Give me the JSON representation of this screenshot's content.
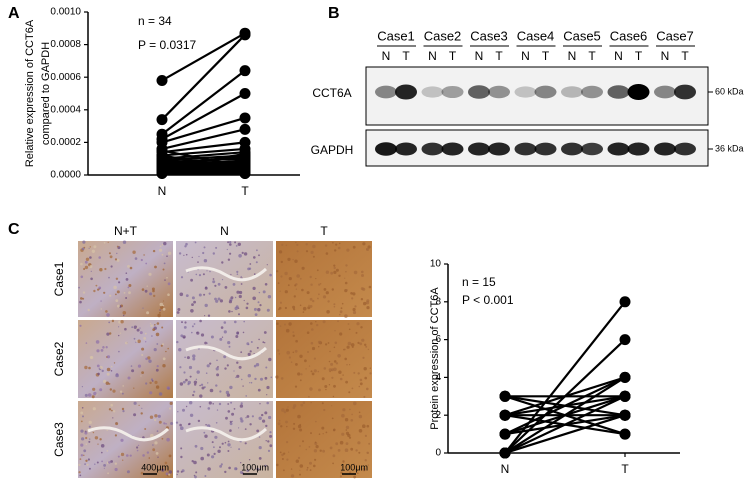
{
  "panel_labels": [
    "A",
    "B",
    "C"
  ],
  "chart_data": [
    {
      "type": "paired",
      "categories": [
        "N",
        "T"
      ],
      "ylabel": [
        "Relative expression of  CCT6A",
        "compared to GAPDH"
      ],
      "annotations": [
        "n = 34",
        "P = 0.0317"
      ],
      "ylim": [
        0,
        0.001
      ],
      "yticks": [
        {
          "value": 0,
          "label": "0.0000"
        },
        {
          "value": 0.0002,
          "label": "0.0002"
        },
        {
          "value": 0.0004,
          "label": "0.0004"
        },
        {
          "value": 0.0006,
          "label": "0.0006"
        },
        {
          "value": 0.0008,
          "label": "0.0008"
        },
        {
          "value": 0.001,
          "label": "0.0010"
        }
      ],
      "color": "#000000",
      "values": [
        [
          0.00058,
          0.00087
        ],
        [
          0.00034,
          0.00086
        ],
        [
          0.00025,
          0.00064
        ],
        [
          0.00022,
          0.0005
        ],
        [
          0.0002,
          0.00035
        ],
        [
          0.00016,
          0.00028
        ],
        [
          0.00014,
          0.0002
        ],
        [
          0.00012,
          0.00016
        ],
        [
          0.0001,
          0.00014
        ],
        [
          9e-05,
          0.00012
        ],
        [
          8e-05,
          0.0001
        ],
        [
          7e-05,
          8e-05
        ],
        [
          6e-05,
          7e-05
        ],
        [
          5e-05,
          6e-05
        ],
        [
          4e-05,
          5e-05
        ],
        [
          3e-05,
          4e-05
        ],
        [
          2e-05,
          3e-05
        ],
        [
          1e-05,
          2e-05
        ],
        [
          0.00015,
          5e-05
        ],
        [
          0.00012,
          3e-05
        ],
        [
          0.0001,
          2e-05
        ],
        [
          8e-05,
          1e-05
        ],
        [
          6e-05,
          0.00011
        ],
        [
          5e-05,
          9e-05
        ],
        [
          4e-05,
          0.00013
        ],
        [
          3e-05,
          7e-05
        ],
        [
          2e-05,
          1e-05
        ],
        [
          1e-05,
          3e-05
        ],
        [
          2e-05,
          6e-05
        ],
        [
          3e-05,
          1e-05
        ],
        [
          4e-05,
          2e-05
        ],
        [
          6e-05,
          4e-05
        ],
        [
          1e-05,
          1e-05
        ],
        [
          7e-05,
          0.00011
        ]
      ]
    },
    {
      "type": "paired",
      "categories": [
        "N",
        "T"
      ],
      "ylabel": [
        "Protein expression of CCT6A"
      ],
      "annotations": [
        "n = 15",
        "P < 0.001"
      ],
      "ylim": [
        0,
        10
      ],
      "yticks": [
        0,
        2,
        4,
        6,
        8,
        10
      ],
      "color": "#000000",
      "values": [
        [
          0,
          8
        ],
        [
          0,
          6
        ],
        [
          1,
          4
        ],
        [
          0,
          4
        ],
        [
          2,
          3
        ],
        [
          3,
          3
        ],
        [
          1,
          2
        ],
        [
          2,
          2
        ],
        [
          3,
          1
        ],
        [
          2,
          1
        ],
        [
          0,
          3
        ],
        [
          1,
          3
        ],
        [
          0,
          2
        ],
        [
          3,
          2
        ],
        [
          2,
          4
        ]
      ]
    }
  ],
  "blot": {
    "cases": [
      {
        "name": "Case1",
        "lanes": [
          "N",
          "T"
        ]
      },
      {
        "name": "Case2",
        "lanes": [
          "N",
          "T"
        ]
      },
      {
        "name": "Case3",
        "lanes": [
          "N",
          "T"
        ]
      },
      {
        "name": "Case4",
        "lanes": [
          "N",
          "T"
        ]
      },
      {
        "name": "Case5",
        "lanes": [
          "N",
          "T"
        ]
      },
      {
        "name": "Case6",
        "lanes": [
          "N",
          "T"
        ]
      },
      {
        "name": "Case7",
        "lanes": [
          "N",
          "T"
        ]
      }
    ],
    "rows": [
      {
        "name": "CCT6A",
        "size": "60 kDa"
      },
      {
        "name": "GAPDH",
        "size": "36 kDa"
      }
    ]
  },
  "ihc": {
    "columns": [
      "N+T",
      "N",
      "T"
    ],
    "rows": [
      "Case1",
      "Case2",
      "Case3"
    ],
    "scale_bars": [
      "400μm",
      "100μm",
      "100μm"
    ]
  }
}
